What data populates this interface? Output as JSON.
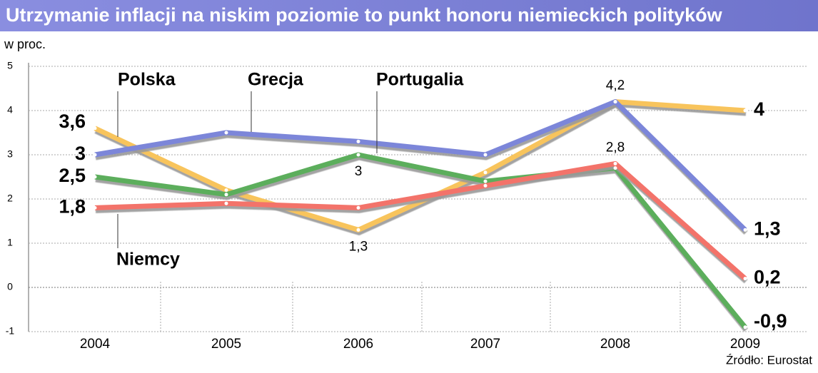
{
  "chart_data": {
    "type": "line",
    "title": "Utrzymanie inflacji na niskim poziomie to punkt honoru niemieckich polityków",
    "subtitle": "w proc.",
    "source": "Źródło: Eurostat",
    "categories": [
      "2004",
      "2005",
      "2006",
      "2007",
      "2008",
      "2009"
    ],
    "series": [
      {
        "name": "Polska",
        "color": "#f8c45c",
        "values": [
          3.6,
          2.2,
          1.3,
          2.6,
          4.2,
          4.0
        ],
        "value_labels": [
          "3,6",
          null,
          "1,3",
          null,
          "4,2",
          "4"
        ]
      },
      {
        "name": "Grecja",
        "color": "#7b86d9",
        "values": [
          3.0,
          3.5,
          3.3,
          3.0,
          4.2,
          1.3
        ],
        "value_labels": [
          "3",
          null,
          null,
          null,
          null,
          "1,3"
        ]
      },
      {
        "name": "Portugalia",
        "color": "#5cae5c",
        "values": [
          2.5,
          2.1,
          3.0,
          2.4,
          2.7,
          -0.9
        ],
        "value_labels": [
          "2,5",
          null,
          "3",
          null,
          null,
          "-0,9"
        ]
      },
      {
        "name": "Niemcy",
        "color": "#f3736a",
        "values": [
          1.8,
          1.9,
          1.8,
          2.3,
          2.8,
          0.2
        ],
        "value_labels": [
          "1,8",
          null,
          null,
          null,
          "2,8",
          "0,2"
        ]
      }
    ],
    "ylim": [
      -1,
      5
    ],
    "yticks": [
      -1,
      0,
      1,
      2,
      3,
      4,
      5
    ],
    "grid": true
  }
}
